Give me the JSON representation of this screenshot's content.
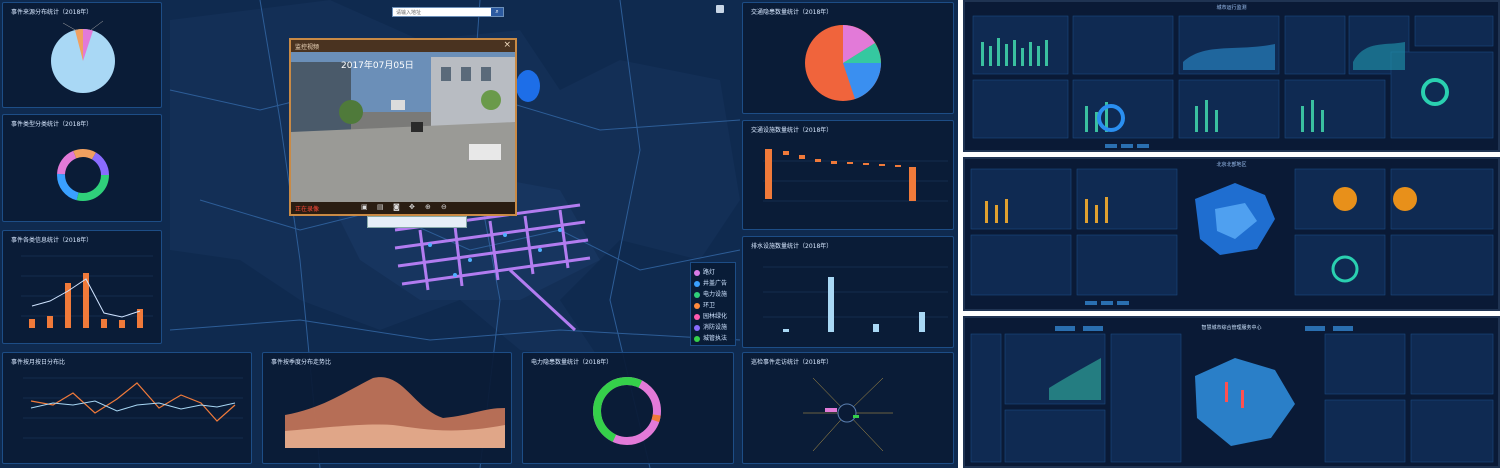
{
  "search": {
    "placeholder": "请输入地址"
  },
  "panels": {
    "p1": "事件来源分布统计（2018年）",
    "p2": "事件类型分类统计（2018年）",
    "p3": "事件各类信息统计（2018年）",
    "p4": "事件按月按日分布比",
    "p5": "事件按季度分布走势比",
    "p6": "电力隐患数量统计（2018年）",
    "p7": "巡检事件走访统计（2018年）",
    "r1": "交通隐患数量统计（2018年）",
    "r2": "交通设施数量统计（2018年）",
    "r3": "排水设施数量统计（2018年）"
  },
  "video": {
    "title": "监控视频",
    "timestamp": "2017年07月05日",
    "record_label": "正在录像"
  },
  "legend": {
    "items": [
      "路灯",
      "井盖广告",
      "电力设施",
      "环卫",
      "园林绿化",
      "消防设施",
      "城管执法"
    ],
    "colors": [
      "#d97ae8",
      "#3aa0ff",
      "#2fd07a",
      "#ff8a3d",
      "#ff5ab0",
      "#8a6cff",
      "#35d04a"
    ]
  },
  "thumbs": {
    "t1_title": "城市运行监测",
    "t2_title": "北京北部地区",
    "t3_title": "智慧城市综合管理服务中心"
  },
  "colors": {
    "accent": "#1d4d86",
    "orange": "#f07a3a",
    "blue": "#3aa0ff",
    "pink": "#e27ad8",
    "green": "#33c24b"
  }
}
